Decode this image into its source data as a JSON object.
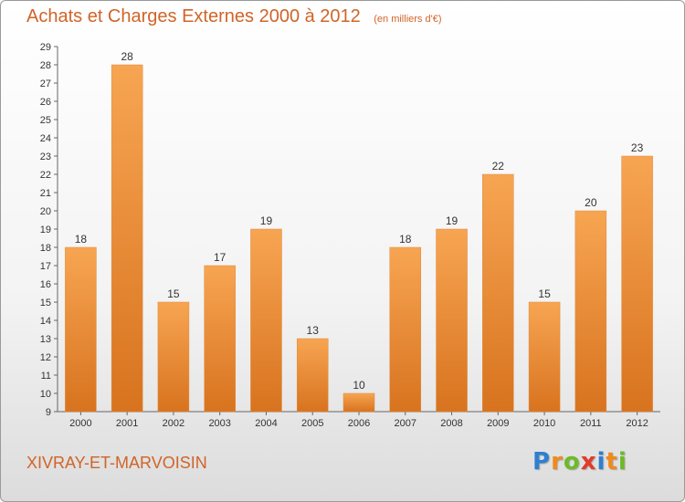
{
  "header": {
    "title": "Achats et Charges Externes 2000 à 2012",
    "unit": "(en milliers d'€)"
  },
  "footer": {
    "city": "XIVRAY-ET-MARVOISIN",
    "logo": {
      "letters": [
        "P",
        "r",
        "o",
        "x",
        "i",
        "t",
        "i"
      ],
      "colors": [
        "#2e7fd0",
        "#f08a1c",
        "#6cbb2a",
        "#e23b2a",
        "#2e7fd0",
        "#f08a1c",
        "#6cbb2a"
      ]
    }
  },
  "chart_data": {
    "type": "bar",
    "title": "Achats et Charges Externes 2000 à 2012",
    "subtitle": "(en milliers d'€)",
    "categories": [
      "2000",
      "2001",
      "2002",
      "2003",
      "2004",
      "2005",
      "2006",
      "2007",
      "2008",
      "2009",
      "2010",
      "2011",
      "2012"
    ],
    "values": [
      18,
      28,
      15,
      17,
      19,
      13,
      10,
      18,
      19,
      22,
      15,
      20,
      23
    ],
    "ylim": [
      9,
      29
    ],
    "yticks": [
      9,
      10,
      11,
      12,
      13,
      14,
      15,
      16,
      17,
      18,
      19,
      20,
      21,
      22,
      23,
      24,
      25,
      26,
      27,
      28,
      29
    ],
    "grid": false,
    "bar_color_top": "#f7a552",
    "bar_color_bottom": "#d8731f"
  }
}
